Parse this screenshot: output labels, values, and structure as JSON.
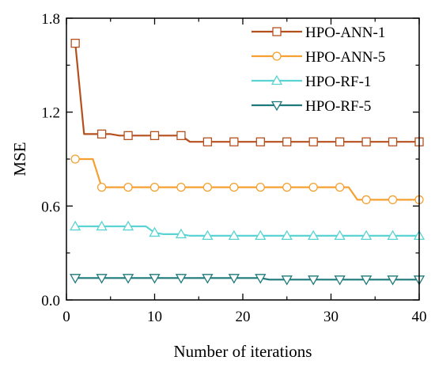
{
  "chart_data": {
    "type": "line",
    "xlabel": "Number of iterations",
    "ylabel": "MSE",
    "xlim": [
      0,
      40
    ],
    "ylim": [
      0.0,
      1.8
    ],
    "xticks": [
      0,
      10,
      20,
      30,
      40
    ],
    "yticks": [
      0.0,
      0.6,
      1.2,
      1.8
    ],
    "xtick_labels": [
      "0",
      "10",
      "20",
      "30",
      "40"
    ],
    "ytick_labels": [
      "0.0",
      "0.6",
      "1.2",
      "1.8"
    ],
    "grid": false,
    "legend_position": "top-right",
    "series": [
      {
        "name": "HPO-ANN-1",
        "color": "#B5501E",
        "marker": "square",
        "x": [
          1,
          2,
          3,
          4,
          5,
          6,
          7,
          8,
          9,
          10,
          11,
          12,
          13,
          14,
          15,
          16,
          17,
          18,
          19,
          20,
          21,
          22,
          23,
          24,
          25,
          26,
          27,
          28,
          29,
          30,
          31,
          32,
          33,
          34,
          35,
          36,
          37,
          38,
          39,
          40
        ],
        "values": [
          1.64,
          1.06,
          1.06,
          1.06,
          1.06,
          1.05,
          1.05,
          1.05,
          1.05,
          1.05,
          1.05,
          1.05,
          1.05,
          1.01,
          1.01,
          1.01,
          1.01,
          1.01,
          1.01,
          1.01,
          1.01,
          1.01,
          1.01,
          1.01,
          1.01,
          1.01,
          1.01,
          1.01,
          1.01,
          1.01,
          1.01,
          1.01,
          1.01,
          1.01,
          1.01,
          1.01,
          1.01,
          1.01,
          1.01,
          1.01
        ],
        "marker_x": [
          1,
          4,
          7,
          10,
          13,
          16,
          19,
          22,
          25,
          28,
          31,
          34,
          37,
          40
        ]
      },
      {
        "name": "HPO-ANN-5",
        "color": "#F5A030",
        "marker": "circle",
        "x": [
          1,
          2,
          3,
          4,
          5,
          6,
          7,
          8,
          9,
          10,
          11,
          12,
          13,
          14,
          15,
          16,
          17,
          18,
          19,
          20,
          21,
          22,
          23,
          24,
          25,
          26,
          27,
          28,
          29,
          30,
          31,
          32,
          33,
          34,
          35,
          36,
          37,
          38,
          39,
          40
        ],
        "values": [
          0.9,
          0.9,
          0.9,
          0.72,
          0.72,
          0.72,
          0.72,
          0.72,
          0.72,
          0.72,
          0.72,
          0.72,
          0.72,
          0.72,
          0.72,
          0.72,
          0.72,
          0.72,
          0.72,
          0.72,
          0.72,
          0.72,
          0.72,
          0.72,
          0.72,
          0.72,
          0.72,
          0.72,
          0.72,
          0.72,
          0.72,
          0.72,
          0.64,
          0.64,
          0.64,
          0.64,
          0.64,
          0.64,
          0.64,
          0.64
        ],
        "marker_x": [
          1,
          4,
          7,
          10,
          13,
          16,
          19,
          22,
          25,
          28,
          31,
          34,
          37,
          40
        ]
      },
      {
        "name": "HPO-RF-1",
        "color": "#5AD3D3",
        "marker": "triangle-up",
        "x": [
          1,
          2,
          3,
          4,
          5,
          6,
          7,
          8,
          9,
          10,
          11,
          12,
          13,
          14,
          15,
          16,
          17,
          18,
          19,
          20,
          21,
          22,
          23,
          24,
          25,
          26,
          27,
          28,
          29,
          30,
          31,
          32,
          33,
          34,
          35,
          36,
          37,
          38,
          39,
          40
        ],
        "values": [
          0.47,
          0.47,
          0.47,
          0.47,
          0.47,
          0.47,
          0.47,
          0.47,
          0.47,
          0.43,
          0.42,
          0.42,
          0.42,
          0.41,
          0.41,
          0.41,
          0.41,
          0.41,
          0.41,
          0.41,
          0.41,
          0.41,
          0.41,
          0.41,
          0.41,
          0.41,
          0.41,
          0.41,
          0.41,
          0.41,
          0.41,
          0.41,
          0.41,
          0.41,
          0.41,
          0.41,
          0.41,
          0.41,
          0.41,
          0.41
        ],
        "marker_x": [
          1,
          4,
          7,
          10,
          13,
          16,
          19,
          22,
          25,
          28,
          31,
          34,
          37,
          40
        ]
      },
      {
        "name": "HPO-RF-5",
        "color": "#1E7A7A",
        "marker": "triangle-down",
        "x": [
          1,
          2,
          3,
          4,
          5,
          6,
          7,
          8,
          9,
          10,
          11,
          12,
          13,
          14,
          15,
          16,
          17,
          18,
          19,
          20,
          21,
          22,
          23,
          24,
          25,
          26,
          27,
          28,
          29,
          30,
          31,
          32,
          33,
          34,
          35,
          36,
          37,
          38,
          39,
          40
        ],
        "values": [
          0.14,
          0.14,
          0.14,
          0.14,
          0.14,
          0.14,
          0.14,
          0.14,
          0.14,
          0.14,
          0.14,
          0.14,
          0.14,
          0.14,
          0.14,
          0.14,
          0.14,
          0.14,
          0.14,
          0.14,
          0.14,
          0.14,
          0.13,
          0.13,
          0.13,
          0.13,
          0.13,
          0.13,
          0.13,
          0.13,
          0.13,
          0.13,
          0.13,
          0.13,
          0.13,
          0.13,
          0.13,
          0.13,
          0.13,
          0.13
        ],
        "marker_x": [
          1,
          4,
          7,
          10,
          13,
          16,
          19,
          22,
          25,
          28,
          31,
          34,
          37,
          40
        ]
      }
    ]
  }
}
